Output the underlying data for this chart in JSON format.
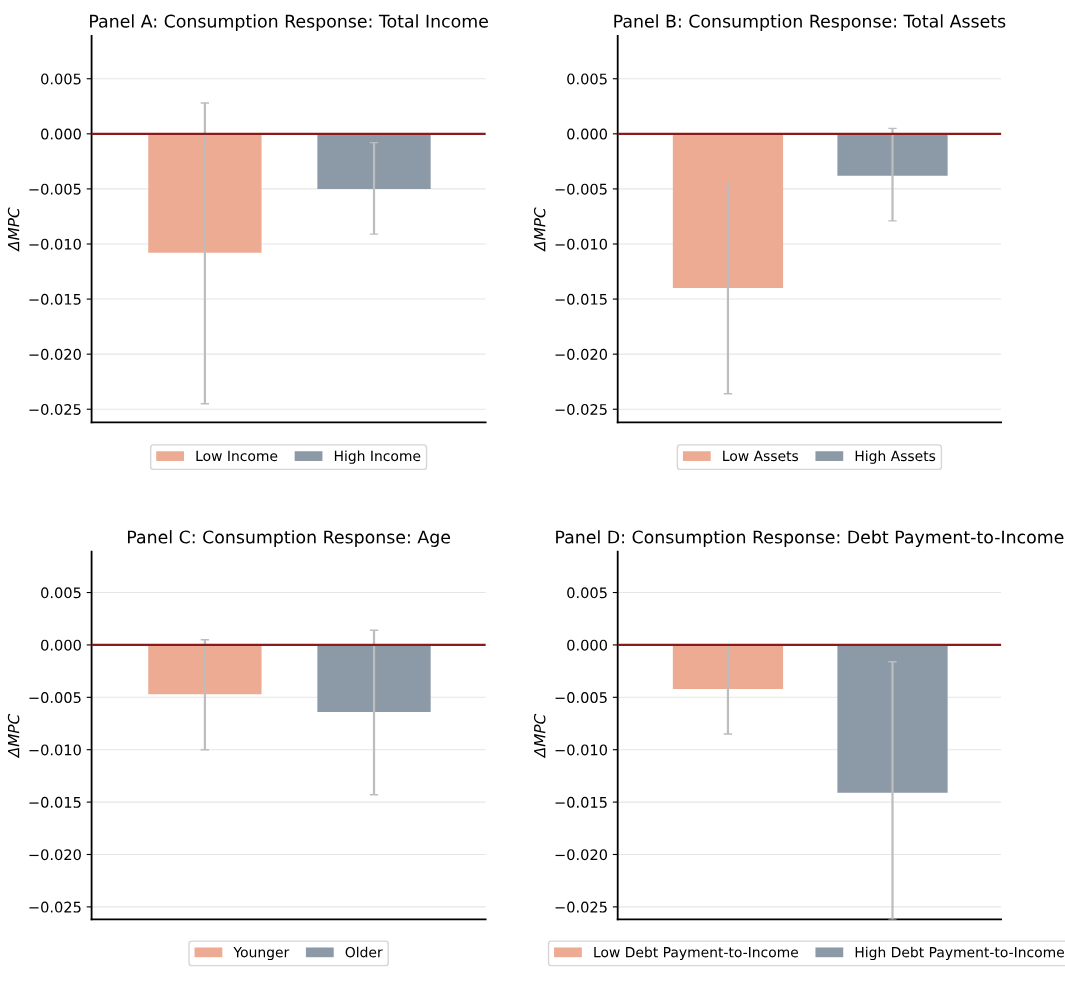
{
  "chart_data": [
    {
      "type": "bar",
      "title": "Panel A: Consumption Response: Total Income",
      "ylabel": "ΔMPC",
      "categories": [
        null,
        null
      ],
      "ylim": [
        -0.0262,
        0.0089
      ],
      "yticks": [
        {
          "value": -0.025,
          "label": "−0.025"
        },
        {
          "value": -0.02,
          "label": "−0.020"
        },
        {
          "value": -0.015,
          "label": "−0.015"
        },
        {
          "value": -0.01,
          "label": "−0.010"
        },
        {
          "value": -0.005,
          "label": "−0.005"
        },
        {
          "value": 0,
          "label": "0.000"
        },
        {
          "value": 0.005,
          "label": "0.005"
        }
      ],
      "grid": "y",
      "legend": "bottom",
      "tick_labels": "y",
      "ref_lines": [
        {
          "axis": "y",
          "value": 0,
          "color": "#8b1a1a"
        }
      ],
      "series": [
        {
          "name": "Low Income",
          "color": "#eeab93",
          "values": [
            -0.0108,
            null
          ],
          "errors": [
            [
              -0.0245,
              0.0028
            ],
            null
          ]
        },
        {
          "name": "High Income",
          "color": "#8c99a6",
          "values": [
            null,
            -0.005
          ],
          "errors": [
            null,
            [
              -0.0091,
              -0.0008
            ]
          ]
        }
      ]
    },
    {
      "type": "bar",
      "title": "Panel C: Consumption Response: Age",
      "ylabel": "ΔMPC",
      "categories": [
        null,
        null
      ],
      "ylim": [
        -0.0262,
        0.0089
      ],
      "yticks": [
        {
          "value": -0.025,
          "label": "−0.025"
        },
        {
          "value": -0.02,
          "label": "−0.020"
        },
        {
          "value": -0.015,
          "label": "−0.015"
        },
        {
          "value": -0.01,
          "label": "−0.010"
        },
        {
          "value": -0.005,
          "label": "−0.005"
        },
        {
          "value": 0,
          "label": "0.000"
        },
        {
          "value": 0.005,
          "label": "0.005"
        }
      ],
      "grid": "y",
      "legend": "bottom",
      "tick_labels": "y",
      "ref_lines": [
        {
          "axis": "y",
          "value": 0,
          "color": "#8b1a1a"
        }
      ],
      "series": [
        {
          "name": "Younger",
          "color": "#eeab93",
          "values": [
            -0.0047,
            null
          ],
          "errors": [
            [
              -0.01,
              0.0005
            ],
            null
          ]
        },
        {
          "name": "Older",
          "color": "#8c99a6",
          "values": [
            null,
            -0.0064
          ],
          "errors": [
            null,
            [
              -0.0143,
              0.0014
            ]
          ]
        }
      ]
    },
    {
      "type": "bar",
      "title": "Panel B: Consumption Response: Total Assets",
      "ylabel": "ΔMPC",
      "categories": [
        null,
        null
      ],
      "ylim": [
        -0.0262,
        0.0089
      ],
      "yticks": [
        {
          "value": -0.025,
          "label": "−0.025"
        },
        {
          "value": -0.02,
          "label": "−0.020"
        },
        {
          "value": -0.015,
          "label": "−0.015"
        },
        {
          "value": -0.01,
          "label": "−0.010"
        },
        {
          "value": -0.005,
          "label": "−0.005"
        },
        {
          "value": 0,
          "label": "0.000"
        },
        {
          "value": 0.005,
          "label": "0.005"
        }
      ],
      "grid": "y",
      "legend": "bottom",
      "tick_labels": "y",
      "ref_lines": [
        {
          "axis": "y",
          "value": 0,
          "color": "#8b1a1a"
        }
      ],
      "series": [
        {
          "name": "Low Assets",
          "color": "#eeab93",
          "values": [
            -0.014,
            null
          ],
          "errors": [
            [
              -0.0236,
              -0.0045
            ],
            null
          ]
        },
        {
          "name": "High Assets",
          "color": "#8c99a6",
          "values": [
            null,
            -0.0038
          ],
          "errors": [
            null,
            [
              -0.0079,
              0.0005
            ]
          ]
        }
      ]
    },
    {
      "type": "bar",
      "title": "Panel D: Consumption Response: Debt Payment-to-Income",
      "ylabel": "ΔMPC",
      "categories": [
        null,
        null
      ],
      "ylim": [
        -0.0262,
        0.0089
      ],
      "yticks": [
        {
          "value": -0.025,
          "label": "−0.025"
        },
        {
          "value": -0.02,
          "label": "−0.020"
        },
        {
          "value": -0.015,
          "label": "−0.015"
        },
        {
          "value": -0.01,
          "label": "−0.010"
        },
        {
          "value": -0.005,
          "label": "−0.005"
        },
        {
          "value": 0,
          "label": "0.000"
        },
        {
          "value": 0.005,
          "label": "0.005"
        }
      ],
      "grid": "y",
      "legend": "bottom",
      "tick_labels": "y",
      "ref_lines": [
        {
          "axis": "y",
          "value": 0,
          "color": "#8b1a1a"
        }
      ],
      "series": [
        {
          "name": "Low Debt Payment-to-Income",
          "color": "#eeab93",
          "values": [
            -0.0042,
            null
          ],
          "errors": [
            [
              -0.0085,
              0.0
            ],
            null
          ]
        },
        {
          "name": "High Debt Payment-to-Income",
          "color": "#8c99a6",
          "values": [
            null,
            -0.0141
          ],
          "errors": [
            null,
            [
              -0.0262,
              -0.0016
            ]
          ]
        }
      ]
    }
  ]
}
